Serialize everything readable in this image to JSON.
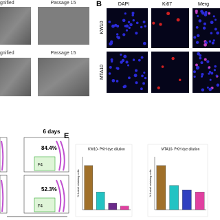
{
  "panel_a": {
    "rows": [
      [
        "gnified",
        "Passage 15"
      ],
      [
        "gnified",
        "Passage 15"
      ]
    ]
  },
  "panel_b": {
    "label": "B",
    "columns": [
      "DAPI",
      "Ki67",
      "Merg"
    ],
    "rows": [
      "KW10",
      "MTA10"
    ]
  },
  "panel_c": {
    "time": "6 days",
    "plots": [
      {
        "percent": "84.4%",
        "gate": "F4"
      },
      {
        "percent": "52.3%",
        "gate": "F4"
      }
    ]
  },
  "panel_e": {
    "label": "E",
    "charts": [
      {
        "type": "bar",
        "title": "KW10- PKH dye dilution",
        "y_label": "% Label retaining cells",
        "ylim": [
          0,
          120
        ],
        "values": [
          100,
          40,
          15,
          8
        ],
        "colors": [
          "#a0702a",
          "#22c3c3",
          "#6a2a8a",
          "#e040a0"
        ]
      },
      {
        "type": "bar",
        "title": "MTA10- PKH dye dilution",
        "y_label": "% Label retaining cells",
        "ylim": [
          0,
          120
        ],
        "values": [
          100,
          55,
          45,
          40
        ],
        "colors": [
          "#a0702a",
          "#22c3c3",
          "#3040c0",
          "#e040a0"
        ]
      }
    ]
  }
}
